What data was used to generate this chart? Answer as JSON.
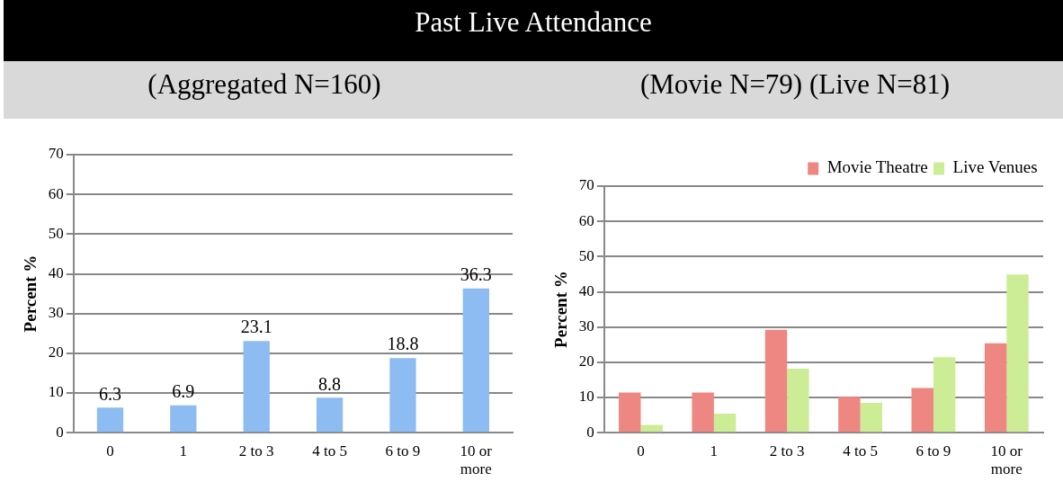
{
  "chart_data": [
    {
      "type": "bar",
      "title": "Past Live Attendance",
      "subtitle": "(Aggregated N=160)",
      "ylabel": "Percent %",
      "categories": [
        "0",
        "1",
        "2 to 3",
        "4 to 5",
        "6 to 9",
        "10 or more"
      ],
      "values": [
        6.3,
        6.9,
        23.1,
        8.8,
        18.8,
        36.3
      ],
      "color": "#8cbcf2",
      "ylim": [
        0,
        70
      ],
      "yticks": [
        0,
        10,
        20,
        30,
        40,
        50,
        60,
        70
      ],
      "grid": "y",
      "data_labels": true
    },
    {
      "type": "bar",
      "subtitle": "(Movie N=79) (Live N=81)",
      "ylabel": "Percent %",
      "categories": [
        "0",
        "1",
        "2 to 3",
        "4 to 5",
        "6 to 9",
        "10 or more"
      ],
      "series": [
        {
          "name": "Movie Theatre",
          "color": "#ee8682",
          "values": [
            11.4,
            11.4,
            29.2,
            10.2,
            12.7,
            25.4
          ]
        },
        {
          "name": "Live Venues",
          "color": "#cdec96",
          "values": [
            2.2,
            5.4,
            18.2,
            8.5,
            21.4,
            44.9
          ]
        }
      ],
      "ylim": [
        0,
        70
      ],
      "yticks": [
        0,
        10,
        20,
        30,
        40,
        50,
        60,
        70
      ],
      "grid": "y",
      "legend": "top right"
    }
  ]
}
